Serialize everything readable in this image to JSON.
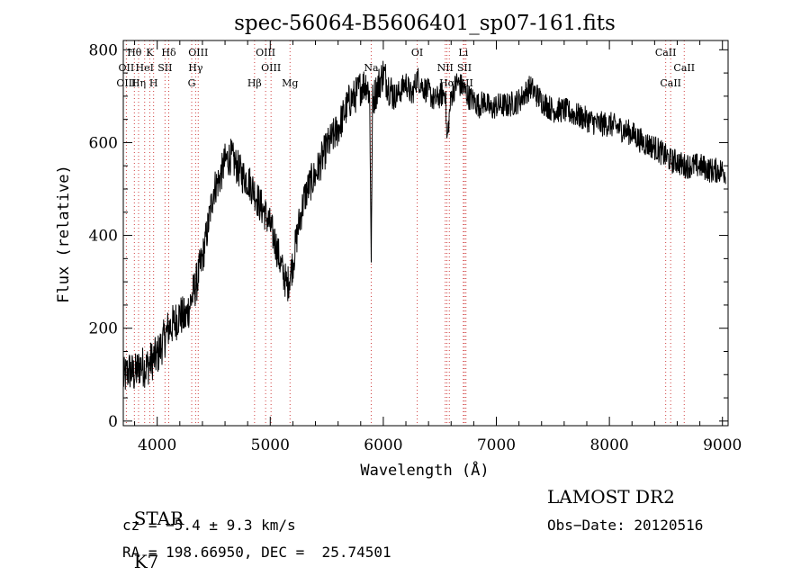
{
  "chart_data": {
    "type": "line",
    "title": "spec-56064-B5606401_sp07-161.fits",
    "xlabel": "Wavelength (Å)",
    "ylabel": "Flux (relative)",
    "xlim": [
      3700,
      9050
    ],
    "ylim": [
      -10,
      820
    ],
    "x_ticks": [
      4000,
      5000,
      6000,
      7000,
      8000,
      9000
    ],
    "y_ticks": [
      0,
      200,
      400,
      600,
      800
    ],
    "grid": false,
    "series": [
      {
        "values_x": [
          3700,
          3750,
          3800,
          3850,
          3900,
          3950,
          4000,
          4050,
          4100,
          4150,
          4200,
          4250,
          4300,
          4350,
          4400,
          4450,
          4500,
          4550,
          4600,
          4650,
          4700,
          4750,
          4800,
          4850,
          4900,
          4950,
          5000,
          5050,
          5100,
          5150,
          5200,
          5250,
          5300,
          5350,
          5400,
          5450,
          5500,
          5550,
          5600,
          5650,
          5700,
          5750,
          5800,
          5850,
          5880,
          5893,
          5905,
          5950,
          6000,
          6050,
          6100,
          6150,
          6200,
          6250,
          6300,
          6350,
          6400,
          6450,
          6500,
          6550,
          6563,
          6600,
          6650,
          6700,
          6750,
          6800,
          6850,
          6900,
          6950,
          7000,
          7100,
          7200,
          7300,
          7400,
          7500,
          7600,
          7700,
          7800,
          7900,
          8000,
          8100,
          8200,
          8300,
          8400,
          8500,
          8550,
          8600,
          8650,
          8700,
          8800,
          8900,
          9000,
          9050
        ],
        "values_y": [
          90,
          110,
          100,
          120,
          115,
          130,
          140,
          170,
          200,
          210,
          230,
          220,
          260,
          300,
          350,
          420,
          500,
          520,
          560,
          570,
          550,
          530,
          520,
          500,
          470,
          450,
          420,
          380,
          330,
          290,
          340,
          420,
          480,
          510,
          530,
          560,
          590,
          610,
          630,
          660,
          690,
          700,
          720,
          730,
          700,
          340,
          690,
          720,
          750,
          720,
          700,
          710,
          730,
          700,
          740,
          720,
          710,
          690,
          700,
          710,
          600,
          700,
          730,
          720,
          700,
          690,
          680,
          690,
          670,
          680,
          680,
          690,
          720,
          690,
          670,
          670,
          660,
          650,
          640,
          640,
          630,
          620,
          600,
          590,
          570,
          560,
          560,
          550,
          550,
          550,
          540,
          540,
          530
        ]
      }
    ],
    "annotations": [
      {
        "label": "Hθ",
        "x": 3798,
        "row": 0,
        "color": "#000000"
      },
      {
        "label": "K",
        "x": 3934,
        "row": 0,
        "color": "#000000"
      },
      {
        "label": "Hδ",
        "x": 4102,
        "row": 0,
        "color": "#000000"
      },
      {
        "label": "OIII",
        "x": 4363,
        "row": 0,
        "color": "#000000"
      },
      {
        "label": "OIII",
        "x": 4959,
        "row": 0,
        "color": "#000000"
      },
      {
        "label": "OI",
        "x": 6300,
        "row": 0,
        "color": "#000000"
      },
      {
        "label": "Li",
        "x": 6708,
        "row": 0,
        "color": "#000000"
      },
      {
        "label": "CaII",
        "x": 8498,
        "row": 0,
        "color": "#000000"
      },
      {
        "label": "OII",
        "x": 3727,
        "row": 1,
        "color": "#000000"
      },
      {
        "label": "HeI",
        "x": 3889,
        "row": 1,
        "color": "#000000"
      },
      {
        "label": "SII",
        "x": 4069,
        "row": 1,
        "color": "#000000"
      },
      {
        "label": "Hγ",
        "x": 4340,
        "row": 1,
        "color": "#000000"
      },
      {
        "label": "OIII",
        "x": 5007,
        "row": 1,
        "color": "#000000"
      },
      {
        "label": "Na",
        "x": 5893,
        "row": 1,
        "color": "#000000"
      },
      {
        "label": "NII",
        "x": 6548,
        "row": 1,
        "color": "#000000"
      },
      {
        "label": "SII",
        "x": 6717,
        "row": 1,
        "color": "#000000"
      },
      {
        "label": "CaII",
        "x": 8662,
        "row": 1,
        "color": "#000000"
      },
      {
        "label": "OIII",
        "x": 3727,
        "row": 2,
        "color": "#000000"
      },
      {
        "label": "Hη",
        "x": 3835,
        "row": 2,
        "color": "#000000"
      },
      {
        "label": "H",
        "x": 3968,
        "row": 2,
        "color": "#000000"
      },
      {
        "label": "G",
        "x": 4305,
        "row": 2,
        "color": "#000000"
      },
      {
        "label": "Hβ",
        "x": 4861,
        "row": 2,
        "color": "#000000"
      },
      {
        "label": "Mg",
        "x": 5175,
        "row": 2,
        "color": "#000000"
      },
      {
        "label": "Hα",
        "x": 6563,
        "row": 2,
        "color": "#000000"
      },
      {
        "label": "SII",
        "x": 6731,
        "row": 2,
        "color": "#000000"
      },
      {
        "label": "CaII",
        "x": 8542,
        "row": 2,
        "color": "#000000"
      }
    ],
    "marker_lines": [
      3727,
      3798,
      3835,
      3889,
      3934,
      3968,
      4069,
      4102,
      4305,
      4340,
      4363,
      4861,
      4959,
      5007,
      5175,
      5893,
      6300,
      6548,
      6563,
      6584,
      6708,
      6717,
      6731,
      8498,
      8542,
      8662
    ],
    "marker_color": "#d04040"
  },
  "info": {
    "object_class": "STAR",
    "subclass": "K7",
    "survey": "LAMOST DR2",
    "redshift": "cz = −5.4 ± 9.3 km/s",
    "obs_date": "Obs−Date: 20120516",
    "coords": "RA = 198.66950, DEC =  25.74501"
  }
}
